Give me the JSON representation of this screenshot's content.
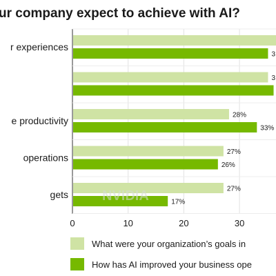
{
  "chart_data": {
    "type": "bar",
    "orientation": "horizontal",
    "title": "ur company expect to achieve with AI?",
    "categories": [
      "r experiences",
      "",
      "e productivity",
      "operations",
      "gets"
    ],
    "series": [
      {
        "name": "What were your organization’s goals in",
        "color": "#cfe3a4",
        "values": [
          37,
          35,
          28,
          27,
          27
        ],
        "labels": [
          "",
          "3",
          "28%",
          "27%",
          "27%"
        ]
      },
      {
        "name": "How has AI improved your business ope",
        "color": "#76b900",
        "values": [
          35,
          36,
          33,
          26,
          17
        ],
        "labels": [
          "3",
          "",
          "33%",
          "26%",
          "17%"
        ]
      }
    ],
    "x_ticks": [
      "0",
      "10",
      "20",
      "30"
    ],
    "xlim": [
      0,
      37
    ],
    "grid": true,
    "legend_position": "bottom",
    "watermark": "NVIDIA"
  }
}
